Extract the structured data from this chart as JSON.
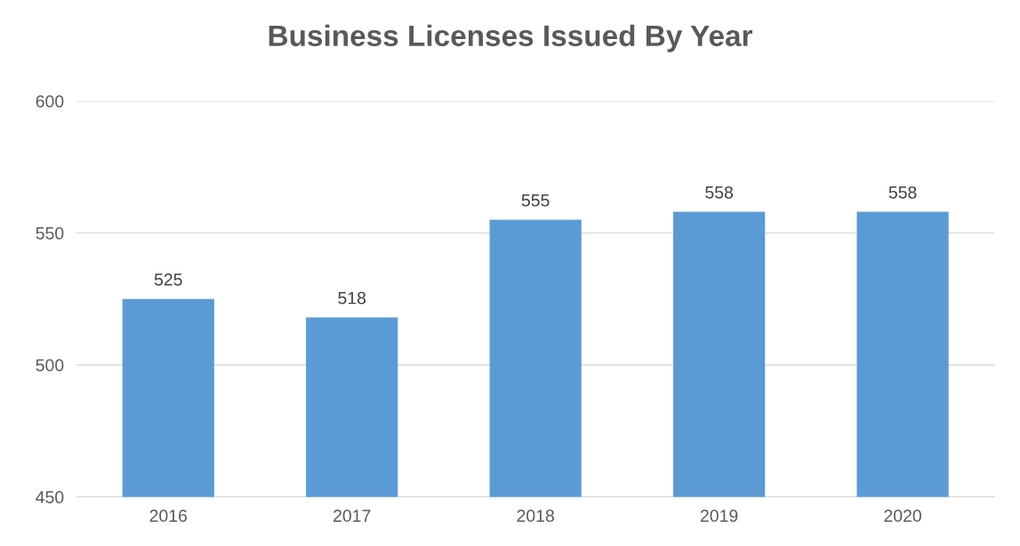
{
  "chart_data": {
    "type": "bar",
    "title": "Business Licenses Issued By Year",
    "categories": [
      "2016",
      "2017",
      "2018",
      "2019",
      "2020"
    ],
    "values": [
      525,
      518,
      555,
      558,
      558
    ],
    "color": "#5b9bd5",
    "ylim": [
      450,
      600
    ],
    "yticks": [
      450,
      500,
      550,
      600
    ],
    "grid": "y",
    "data_labels": true
  }
}
